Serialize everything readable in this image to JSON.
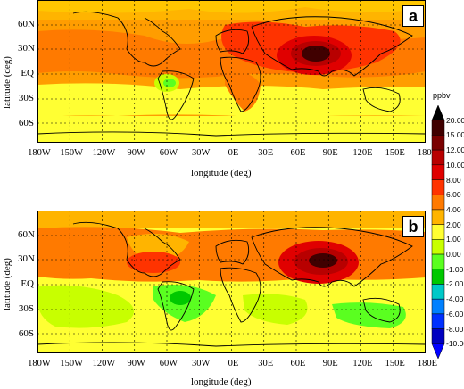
{
  "figure": {
    "panels": [
      {
        "id": "a",
        "label": "a"
      },
      {
        "id": "b",
        "label": "b"
      }
    ],
    "axes": {
      "xlabel": "longitude (deg)",
      "ylabel": "latitude (deg)",
      "xticks": [
        "180W",
        "150W",
        "120W",
        "90W",
        "60W",
        "30W",
        "0E",
        "30E",
        "60E",
        "90E",
        "120E",
        "150E",
        "180E"
      ],
      "yticks": [
        "60N",
        "30N",
        "EQ",
        "30S",
        "60S"
      ]
    },
    "colorbar": {
      "unit": "ppbv",
      "levels": [
        "20.00",
        "15.00",
        "12.00",
        "10.00",
        "8.00",
        "6.00",
        "4.00",
        "2.00",
        "1.00",
        "0.00",
        "-1.00",
        "-2.00",
        "-4.00",
        "-6.00",
        "-8.00",
        "-10.00"
      ],
      "colors": [
        "#000000",
        "#400000",
        "#7a0000",
        "#b80000",
        "#e00000",
        "#ff3300",
        "#ff7a00",
        "#ffb400",
        "#ffff33",
        "#c8ff00",
        "#5aff20",
        "#00c800",
        "#00c8c8",
        "#0080ff",
        "#0030ff",
        "#0000c0",
        "#0000ff"
      ]
    }
  }
}
